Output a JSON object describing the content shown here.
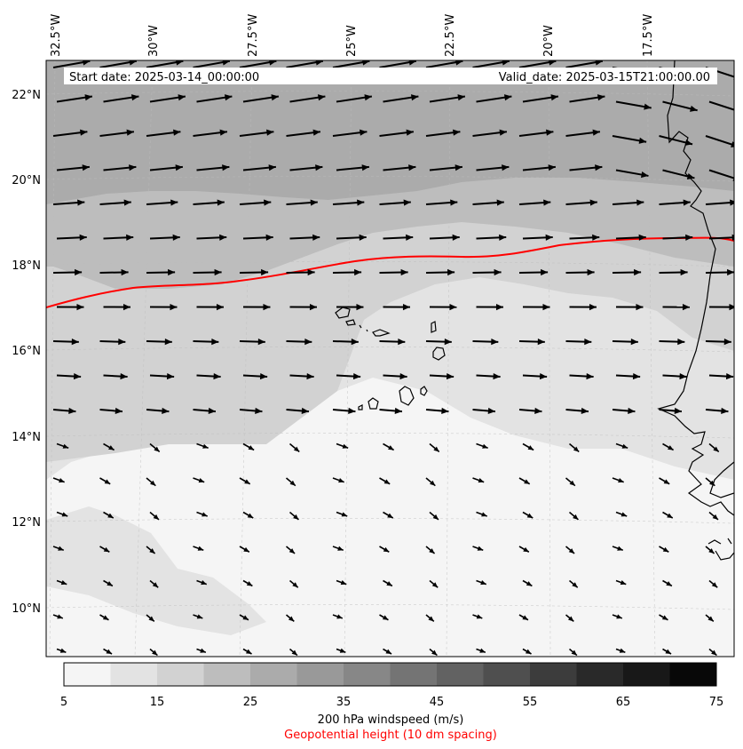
{
  "info": {
    "start_date": "Start date: 2025-03-14_00:00:00",
    "valid_date": "Valid_date: 2025-03-15T21:00:00.00"
  },
  "axes": {
    "lon_ticks": [
      "32.5°W",
      "30°W",
      "27.5°W",
      "25°W",
      "22.5°W",
      "20°W",
      "17.5°W"
    ],
    "lat_ticks": [
      "22°N",
      "20°N",
      "18°N",
      "16°N",
      "14°N",
      "12°N",
      "10°N"
    ]
  },
  "colorbar": {
    "tick_labels": [
      "5",
      "15",
      "25",
      "35",
      "45",
      "55",
      "65",
      "75"
    ],
    "colors": [
      "#f5f5f5",
      "#e3e3e3",
      "#d2d2d2",
      "#bdbdbd",
      "#ababab",
      "#999999",
      "#878787",
      "#747474",
      "#626262",
      "#4f4f4f",
      "#3c3c3c",
      "#292929",
      "#181818",
      "#080808"
    ],
    "title": "200 hPa windspeed (m/s)",
    "subtitle": "Geopotential height (10 dm spacing)",
    "subtitle_color": "#ff0000"
  },
  "map": {
    "contour_color": "#ff0000",
    "coastline_color": "#000000",
    "vector_color": "#000000"
  }
}
